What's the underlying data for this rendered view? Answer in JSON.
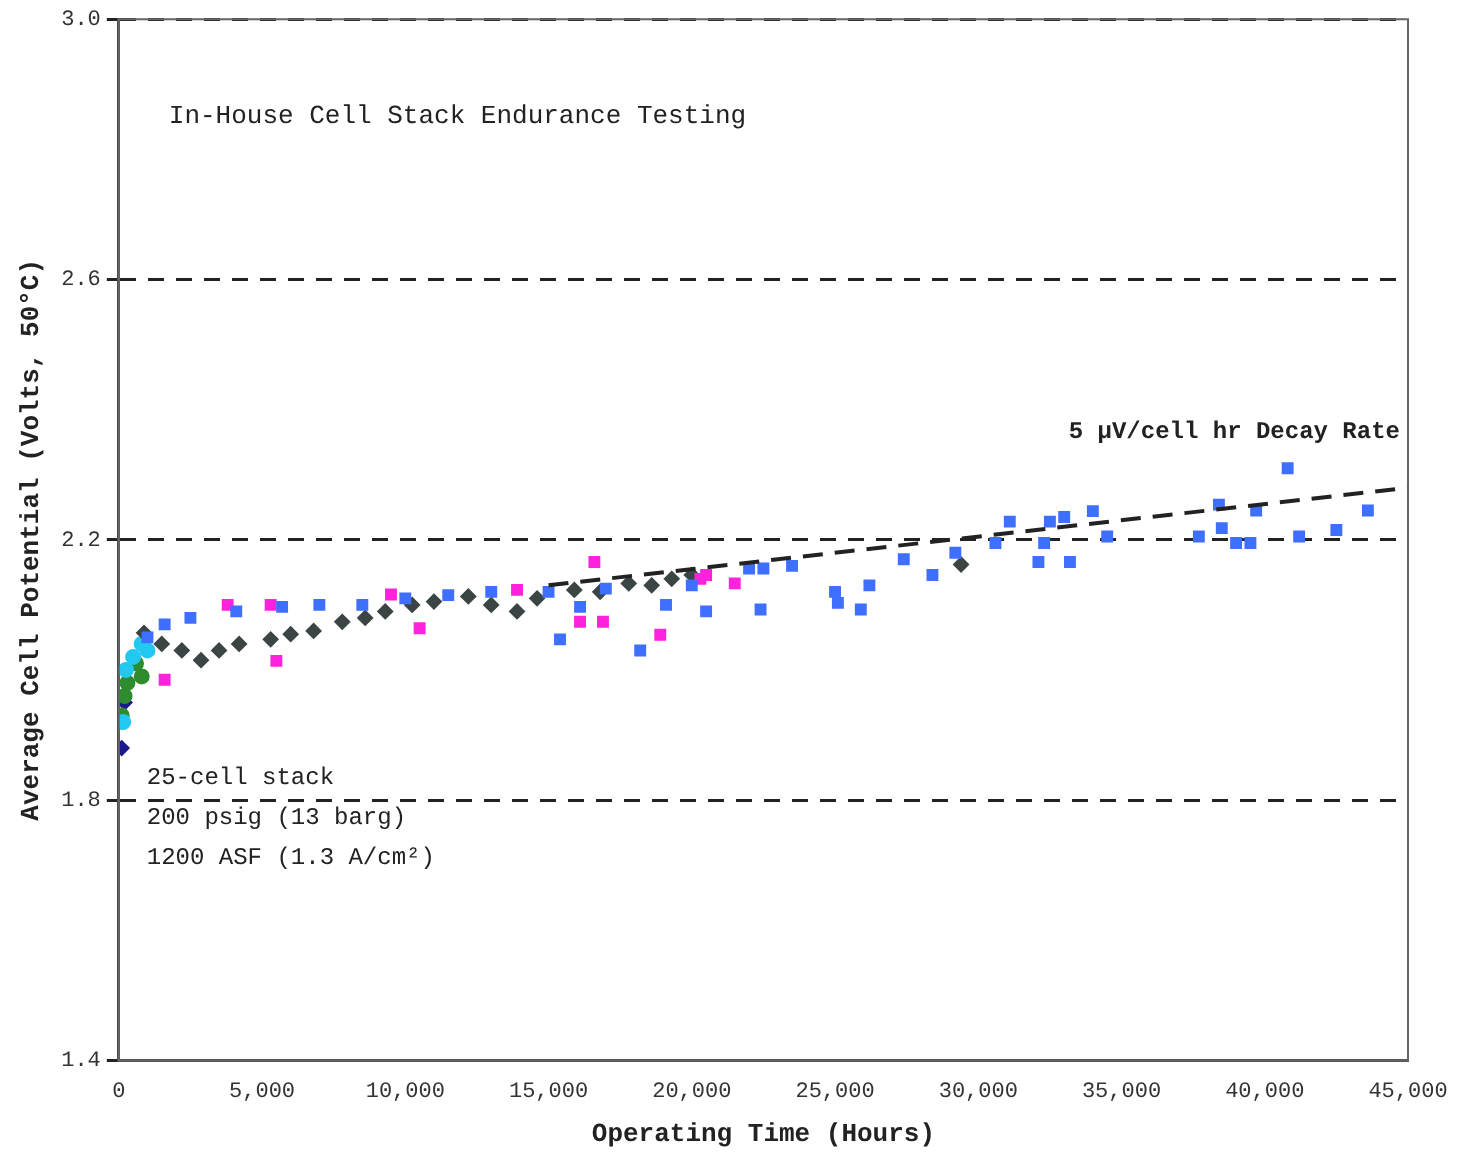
{
  "chart_data": {
    "type": "scatter",
    "title": "In-House Cell Stack Endurance Testing",
    "xlabel": "Operating Time (Hours)",
    "ylabel": "Average Cell Potential (Volts, 50°C)",
    "xlim": [
      0,
      45000
    ],
    "xticks": [
      0,
      {
        "value": 5000,
        "label": "5,000"
      },
      {
        "value": 10000,
        "label": "10,000"
      },
      {
        "value": 15000,
        "label": "15,000"
      },
      {
        "value": 20000,
        "label": "20,000"
      },
      {
        "value": 25000,
        "label": "25,000"
      },
      {
        "value": 30000,
        "label": "30,000"
      },
      {
        "value": 35000,
        "label": "35,000"
      },
      {
        "value": 40000,
        "label": "40,000"
      },
      {
        "value": 45000,
        "label": "45,000"
      }
    ],
    "ylim": [
      1.4,
      3.0
    ],
    "yticks": [
      1.4,
      1.8,
      2.2,
      2.6,
      {
        "value": 3.0,
        "label": "3.0"
      }
    ],
    "grid": "y",
    "legend": false,
    "series": [
      {
        "type": "scatter",
        "marker": "square",
        "color": "#3f6fff",
        "x": [
          1000,
          1600,
          2500,
          4100,
          5700,
          7000,
          8500,
          10000,
          11500,
          13000,
          15000,
          15400,
          16100,
          17000,
          18200,
          19100,
          20000,
          20500,
          22000,
          22400,
          22500,
          23500,
          25000,
          25100,
          25900,
          26200,
          27400,
          28400,
          29200,
          30600,
          31100,
          32100,
          32300,
          32500,
          33000,
          33200,
          34000,
          34500,
          37700,
          38400,
          38500,
          39000,
          39500,
          39700,
          40800,
          41200,
          42500,
          43600
        ],
        "values": [
          2.05,
          2.07,
          2.08,
          2.09,
          2.097,
          2.1,
          2.1,
          2.11,
          2.115,
          2.12,
          2.12,
          2.047,
          2.097,
          2.125,
          2.03,
          2.1,
          2.13,
          2.09,
          2.156,
          2.093,
          2.156,
          2.16,
          2.12,
          2.103,
          2.093,
          2.13,
          2.17,
          2.146,
          2.18,
          2.195,
          2.228,
          2.166,
          2.195,
          2.228,
          2.235,
          2.166,
          2.244,
          2.205,
          2.205,
          2.254,
          2.218,
          2.195,
          2.195,
          2.245,
          2.31,
          2.205,
          2.215,
          2.245
        ]
      },
      {
        "type": "scatter",
        "marker": "square",
        "color": "#ff22dd",
        "x": [
          1600,
          3800,
          5300,
          5500,
          9500,
          10500,
          13900,
          16100,
          16600,
          16900,
          18900,
          20300,
          20500,
          21500
        ],
        "values": [
          1.985,
          2.1,
          2.1,
          2.014,
          2.116,
          2.064,
          2.123,
          2.074,
          2.166,
          2.074,
          2.054,
          2.14,
          2.146,
          2.133
        ]
      },
      {
        "type": "scatter",
        "marker": "diamond",
        "color": "#3c4545",
        "x": [
          880,
          1500,
          2200,
          2870,
          3500,
          4200,
          5300,
          6000,
          6800,
          7800,
          8600,
          9300,
          10240,
          11000,
          12200,
          13000,
          13900,
          14600,
          15900,
          16800,
          17800,
          18600,
          19300,
          20000,
          29400
        ],
        "values": [
          2.057,
          2.04,
          2.03,
          2.015,
          2.03,
          2.04,
          2.047,
          2.055,
          2.06,
          2.074,
          2.08,
          2.09,
          2.1,
          2.105,
          2.113,
          2.1,
          2.09,
          2.11,
          2.123,
          2.12,
          2.133,
          2.13,
          2.14,
          2.146,
          2.162
        ]
      },
      {
        "type": "scatter",
        "marker": "circle",
        "color": "#22c8f0",
        "x": [
          150,
          250,
          500,
          800,
          1000
        ],
        "values": [
          1.92,
          2.0,
          2.02,
          2.04,
          2.03
        ]
      },
      {
        "type": "scatter",
        "marker": "circle",
        "color": "#2e8b2e",
        "x": [
          100,
          200,
          300,
          600,
          800
        ],
        "values": [
          1.93,
          1.96,
          1.98,
          2.01,
          1.99
        ]
      },
      {
        "type": "scatter",
        "marker": "diamond",
        "color": "#1a1a8c",
        "x": [
          100,
          200
        ],
        "values": [
          1.88,
          1.95
        ]
      },
      {
        "type": "line",
        "name": "5 µV/cell hr Decay Rate",
        "line_style": "dashed",
        "marker": "none",
        "color": "#222222",
        "x": [
          15000,
          45000
        ],
        "values": [
          2.13,
          2.28
        ]
      }
    ],
    "annotations": [
      "25-cell stack",
      "200 psig (13 barg)",
      "1200 ASF (1.3 A/cm²)"
    ]
  }
}
